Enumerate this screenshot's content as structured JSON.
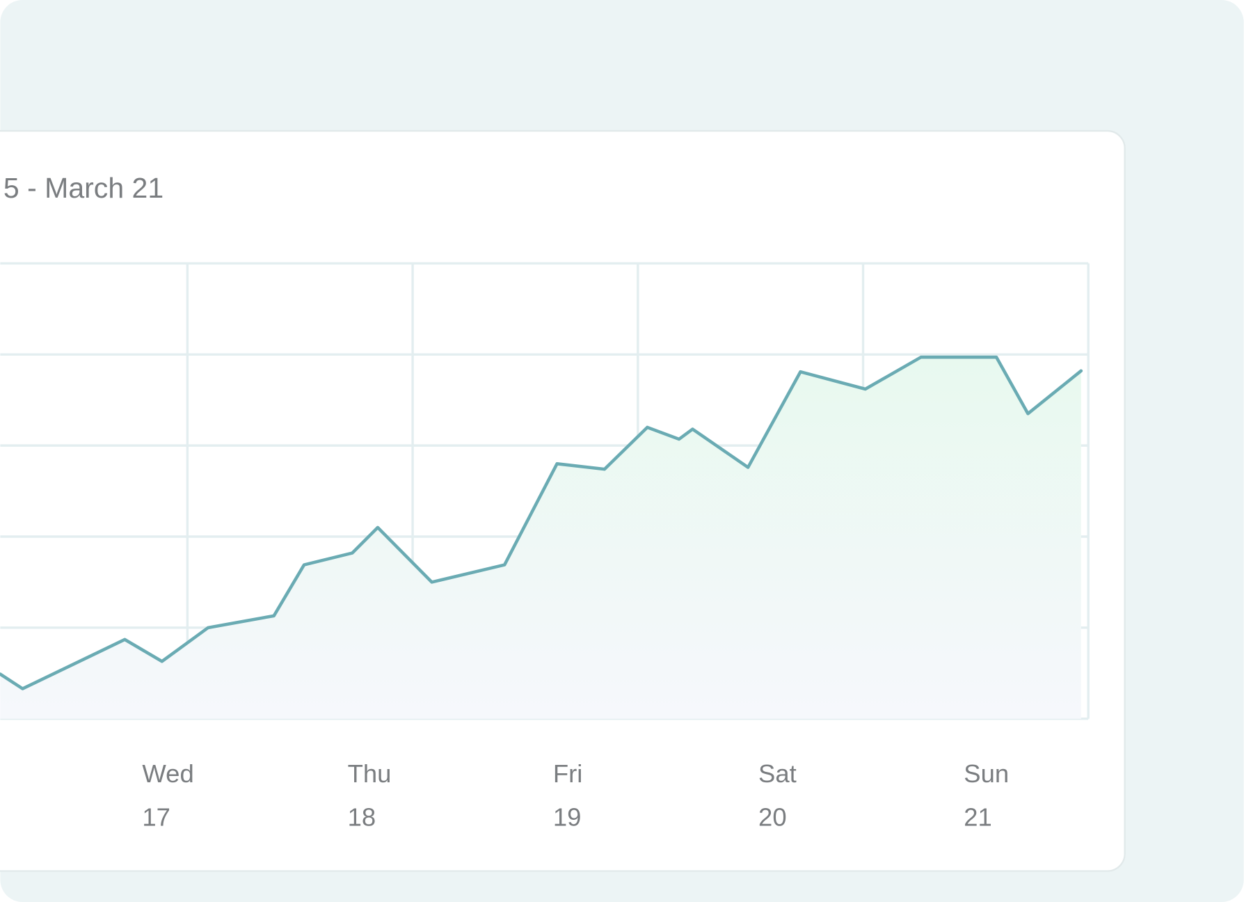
{
  "chart_data": {
    "type": "line",
    "title": "5 - March 21",
    "categories": [
      "Wed",
      "Thu",
      "Fri",
      "Sat",
      "Sun"
    ],
    "dates": [
      "17",
      "18",
      "19",
      "20",
      "21"
    ],
    "series": [
      {
        "color": "#6aabb3",
        "x": [
          -0.831,
          -0.732,
          -0.278,
          -0.113,
          0.092,
          0.384,
          0.518,
          0.732,
          0.845,
          1.085,
          1.408,
          1.641,
          1.852,
          2.042,
          2.183,
          2.243,
          2.489,
          2.722,
          3.01,
          3.257,
          3.592,
          3.732,
          3.968
        ],
        "values": [
          0.49,
          0.33,
          0.87,
          0.63,
          1.0,
          1.13,
          1.69,
          1.82,
          2.1,
          1.5,
          1.69,
          2.8,
          2.74,
          3.2,
          3.07,
          3.18,
          2.76,
          3.81,
          3.62,
          3.97,
          3.97,
          3.35,
          3.82
        ]
      }
    ],
    "xlim": [
      -0.831,
      4
    ],
    "xticks": [
      0,
      1,
      2,
      3,
      4
    ],
    "ylim": [
      0,
      5
    ],
    "yticks": [
      0,
      1,
      2,
      3,
      4,
      5
    ],
    "grid": true
  }
}
